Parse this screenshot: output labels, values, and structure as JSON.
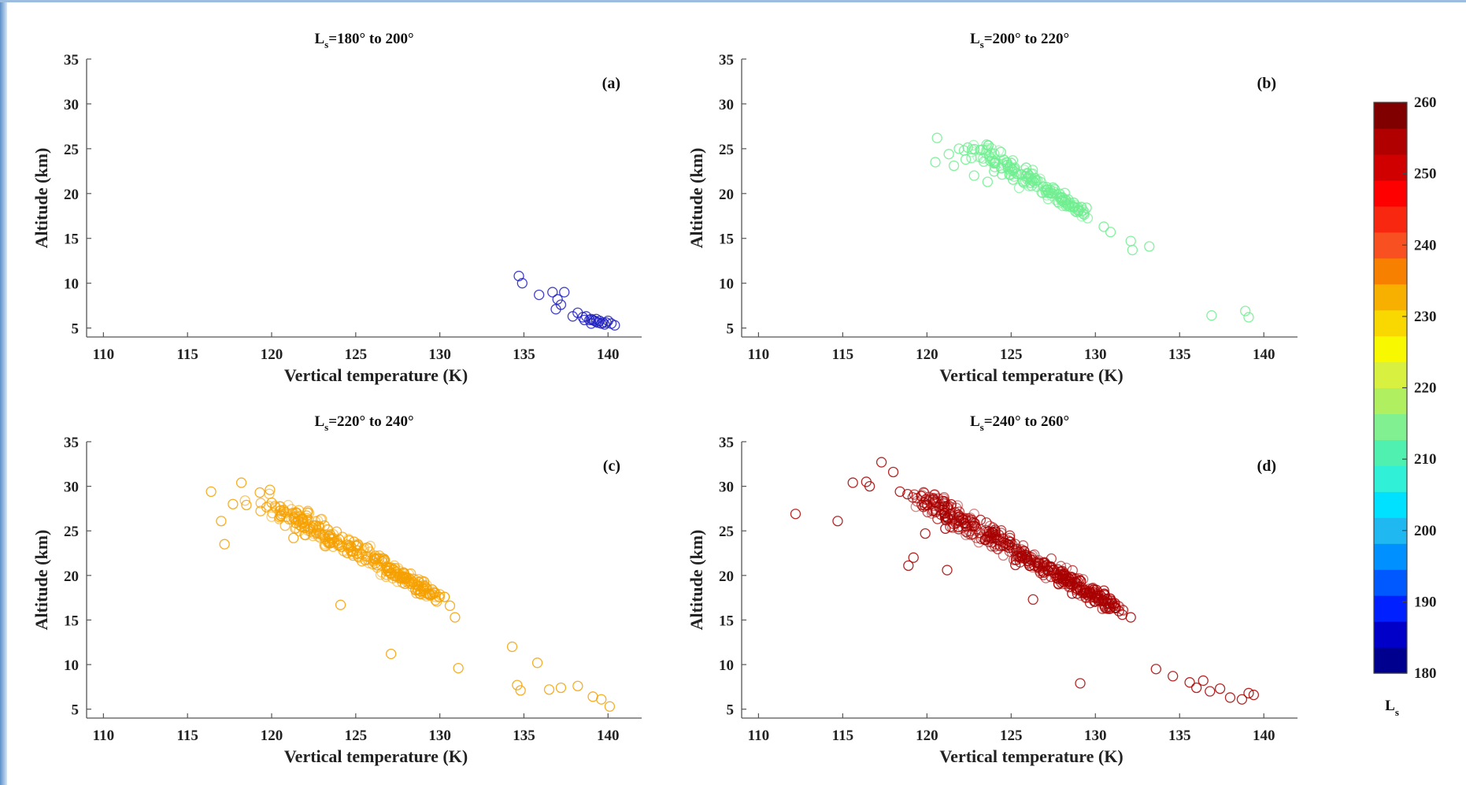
{
  "colors": {
    "frame_gradient_left": "#5b8fc9",
    "frame_gradient_right": "#cfe0f2",
    "axis": "#555555",
    "text": "#222222"
  },
  "colormap": [
    "#00008f",
    "#0000c8",
    "#0020ff",
    "#0058ff",
    "#0090ff",
    "#20b8f0",
    "#00e0ff",
    "#30f0d8",
    "#50f0b0",
    "#80f090",
    "#b0f060",
    "#d8f040",
    "#f8f800",
    "#f8d800",
    "#f8b000",
    "#f88000",
    "#f85020",
    "#f82810",
    "#ff0000",
    "#d00000",
    "#b00000",
    "#800000"
  ],
  "chart_data": [
    {
      "type": "scatter",
      "panel_tag": "(a)",
      "title_prefix": "L",
      "title_sub": "s",
      "title_rest": "=180° to 200°",
      "xlabel": "Vertical temperature (K)",
      "ylabel": "Altitude (km)",
      "xlim": [
        109,
        142
      ],
      "ylim": [
        4,
        35
      ],
      "xticks": [
        110,
        115,
        120,
        125,
        130,
        135,
        140
      ],
      "yticks": [
        5,
        10,
        15,
        20,
        25,
        30,
        35
      ],
      "ls_range": [
        180,
        200
      ],
      "ls_color": "#2020c0",
      "points": [
        [
          134.7,
          10.8
        ],
        [
          134.9,
          10.0
        ],
        [
          135.9,
          8.7
        ],
        [
          136.7,
          9.0
        ],
        [
          137.0,
          8.2
        ],
        [
          137.2,
          7.6
        ],
        [
          137.4,
          9.0
        ],
        [
          136.9,
          7.1
        ],
        [
          137.9,
          6.3
        ],
        [
          138.2,
          6.7
        ],
        [
          138.5,
          6.2
        ],
        [
          138.7,
          6.3
        ],
        [
          138.9,
          5.9
        ],
        [
          139.0,
          6.0
        ],
        [
          139.1,
          5.9
        ],
        [
          139.2,
          5.8
        ],
        [
          139.3,
          5.7
        ],
        [
          139.4,
          5.6
        ],
        [
          139.5,
          5.8
        ],
        [
          139.6,
          5.5
        ],
        [
          139.7,
          5.6
        ],
        [
          139.9,
          5.6
        ],
        [
          140.0,
          5.8
        ],
        [
          140.2,
          5.5
        ],
        [
          140.4,
          5.3
        ],
        [
          139.3,
          6.0
        ],
        [
          139.8,
          5.4
        ],
        [
          138.6,
          5.9
        ],
        [
          139.0,
          5.5
        ]
      ]
    },
    {
      "type": "scatter",
      "panel_tag": "(b)",
      "title_prefix": "L",
      "title_sub": "s",
      "title_rest": "=200° to 220°",
      "xlabel": "Vertical temperature (K)",
      "ylabel": "Altitude (km)",
      "xlim": [
        109,
        142
      ],
      "ylim": [
        4,
        35
      ],
      "xticks": [
        110,
        115,
        120,
        125,
        130,
        135,
        140
      ],
      "yticks": [
        5,
        10,
        15,
        20,
        25,
        30,
        35
      ],
      "ls_range": [
        200,
        220
      ],
      "ls_color": "#70ee90",
      "points": [
        [
          120.5,
          23.5
        ],
        [
          120.6,
          26.2
        ],
        [
          121.3,
          24.4
        ],
        [
          121.6,
          23.1
        ],
        [
          121.9,
          25.0
        ],
        [
          122.2,
          24.8
        ],
        [
          122.3,
          23.8
        ],
        [
          122.8,
          22.0
        ],
        [
          123.3,
          24.9
        ],
        [
          123.7,
          24.2
        ],
        [
          123.6,
          21.3
        ],
        [
          130.5,
          16.3
        ],
        [
          130.9,
          15.7
        ],
        [
          132.1,
          14.7
        ],
        [
          132.2,
          13.7
        ],
        [
          133.2,
          14.1
        ],
        [
          136.9,
          6.4
        ],
        [
          138.9,
          6.9
        ],
        [
          139.1,
          6.2
        ]
      ],
      "cluster": {
        "count": 170,
        "x_start": 123.2,
        "y_start": 24.8,
        "x_end": 129.4,
        "y_end": 17.8,
        "spread": 2.2
      }
    },
    {
      "type": "scatter",
      "panel_tag": "(c)",
      "title_prefix": "L",
      "title_sub": "s",
      "title_rest": "=220° to 240°",
      "xlabel": "Vertical temperature (K)",
      "ylabel": "Altitude (km)",
      "xlim": [
        109,
        142
      ],
      "ylim": [
        4,
        35
      ],
      "xticks": [
        110,
        115,
        120,
        125,
        130,
        135,
        140
      ],
      "yticks": [
        5,
        10,
        15,
        20,
        25,
        30,
        35
      ],
      "ls_range": [
        220,
        240
      ],
      "ls_color": "#f5a000",
      "points": [
        [
          116.4,
          29.4
        ],
        [
          117.0,
          26.1
        ],
        [
          117.2,
          23.5
        ],
        [
          117.7,
          28.0
        ],
        [
          118.2,
          30.4
        ],
        [
          118.5,
          27.9
        ],
        [
          119.3,
          29.3
        ],
        [
          119.9,
          29.6
        ],
        [
          120.6,
          26.9
        ],
        [
          121.3,
          24.2
        ],
        [
          124.1,
          16.7
        ],
        [
          127.1,
          11.2
        ],
        [
          130.6,
          16.6
        ],
        [
          130.9,
          15.3
        ],
        [
          131.1,
          9.6
        ],
        [
          134.3,
          12.0
        ],
        [
          134.6,
          7.7
        ],
        [
          134.8,
          7.1
        ],
        [
          135.8,
          10.2
        ],
        [
          136.5,
          7.2
        ],
        [
          137.2,
          7.4
        ],
        [
          138.2,
          7.6
        ],
        [
          139.1,
          6.4
        ],
        [
          139.6,
          6.1
        ],
        [
          140.1,
          5.3
        ]
      ],
      "cluster": {
        "count": 300,
        "x_start": 119.8,
        "y_start": 28.2,
        "x_end": 129.8,
        "y_end": 17.6,
        "spread": 2.8
      }
    },
    {
      "type": "scatter",
      "panel_tag": "(d)",
      "title_prefix": "L",
      "title_sub": "s",
      "title_rest": "=240° to 260°",
      "xlabel": "Vertical temperature (K)",
      "ylabel": "Altitude (km)",
      "xlim": [
        109,
        142
      ],
      "ylim": [
        4,
        35
      ],
      "xticks": [
        110,
        115,
        120,
        125,
        130,
        135,
        140
      ],
      "yticks": [
        5,
        10,
        15,
        20,
        25,
        30,
        35
      ],
      "ls_range": [
        240,
        260
      ],
      "ls_color": "#a80000",
      "points": [
        [
          112.2,
          26.9
        ],
        [
          114.7,
          26.1
        ],
        [
          115.6,
          30.4
        ],
        [
          116.4,
          30.5
        ],
        [
          116.6,
          30.0
        ],
        [
          117.3,
          32.7
        ],
        [
          118.0,
          31.6
        ],
        [
          118.4,
          29.4
        ],
        [
          118.9,
          21.1
        ],
        [
          119.2,
          22.0
        ],
        [
          119.9,
          24.7
        ],
        [
          121.2,
          20.6
        ],
        [
          126.3,
          17.3
        ],
        [
          129.1,
          7.9
        ],
        [
          131.4,
          16.0
        ],
        [
          131.6,
          15.6
        ],
        [
          132.1,
          15.3
        ],
        [
          133.6,
          9.5
        ],
        [
          134.6,
          8.7
        ],
        [
          135.6,
          8.0
        ],
        [
          136.4,
          8.2
        ],
        [
          136.0,
          7.4
        ],
        [
          136.8,
          7.0
        ],
        [
          137.4,
          7.3
        ],
        [
          138.0,
          6.3
        ],
        [
          138.7,
          6.1
        ],
        [
          139.1,
          6.8
        ],
        [
          139.4,
          6.6
        ]
      ],
      "cluster": {
        "count": 420,
        "x_start": 119.8,
        "y_start": 28.6,
        "x_end": 131.2,
        "y_end": 16.4,
        "spread": 2.6
      }
    }
  ],
  "colorbar": {
    "label_prefix": "L",
    "label_sub": "s",
    "min": 180,
    "max": 260,
    "tick_values": [
      180,
      190,
      200,
      210,
      220,
      230,
      240,
      250,
      260
    ]
  }
}
